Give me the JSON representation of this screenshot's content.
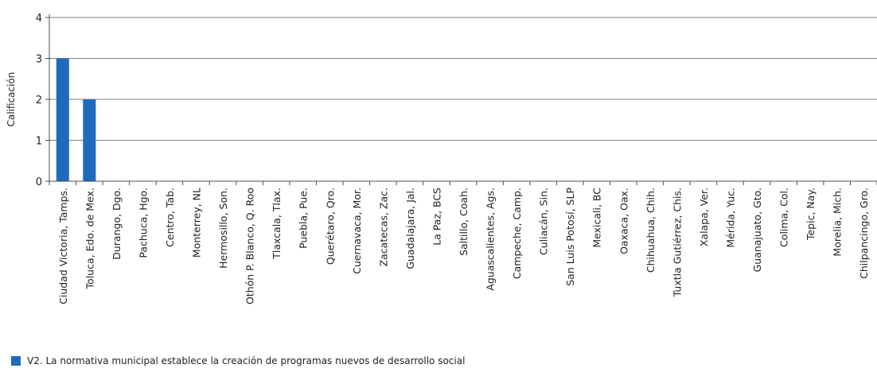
{
  "colors": {
    "bar": "#1f6bbd",
    "grid": "#7f7f7f",
    "axis": "#4d4d4d",
    "text": "#222222",
    "background": "#ffffff"
  },
  "chart_data": {
    "type": "bar",
    "title": "",
    "xlabel": "",
    "ylabel": "Calificación",
    "ylim": [
      0,
      4
    ],
    "yticks": [
      0,
      1,
      2,
      3,
      4
    ],
    "grid": true,
    "legend_position": "bottom-left",
    "categories": [
      "Ciudad Victoria, Tamps.",
      "Toluca, Edo. de Mex.",
      "Durango, Dgo.",
      "Pachuca, Hgo.",
      "Centro, Tab.",
      "Monterrey, NL",
      "Hermosillo, Son.",
      "Othón P. Blanco, Q. Roo",
      "Tlaxcala, Tlax.",
      "Puebla, Pue.",
      "Querétaro, Qro.",
      "Cuernavaca, Mor.",
      "Zacatecas, Zac.",
      "Guadalajara, Jal.",
      "La Paz, BCS",
      "Saltillo, Coah.",
      "Aguascalientes, Ags.",
      "Campeche, Camp.",
      "Culiacán, Sin.",
      "San Luis Potosí, SLP",
      "Mexicali, BC",
      "Oaxaca, Oax.",
      "Chihuahua, Chih.",
      "Tuxtla Gutiérrez, Chis.",
      "Xalapa, Ver.",
      "Mérida, Yuc.",
      "Guanajuato, Gto.",
      "Colima, Col.",
      "Tepic, Nay.",
      "Morelia, Mich.",
      "Chilpancingo, Gro."
    ],
    "series": [
      {
        "name": "V2. La normativa municipal establece la creación de programas nuevos de desarrollo social",
        "values": [
          3,
          2,
          0,
          0,
          0,
          0,
          0,
          0,
          0,
          0,
          0,
          0,
          0,
          0,
          0,
          0,
          0,
          0,
          0,
          0,
          0,
          0,
          0,
          0,
          0,
          0,
          0,
          0,
          0,
          0,
          0
        ]
      }
    ]
  }
}
